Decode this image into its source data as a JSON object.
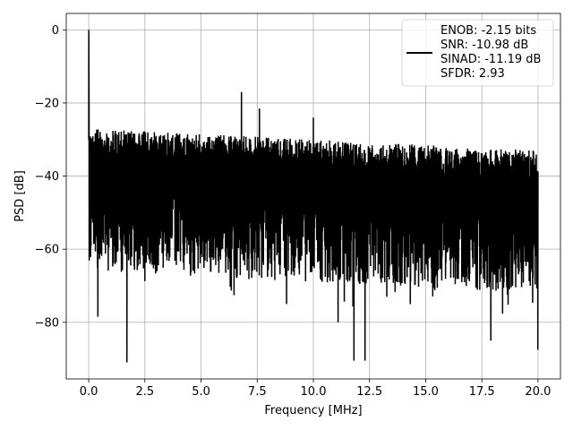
{
  "chart_data": {
    "type": "line",
    "title": "",
    "xlabel": "Frequency [MHz]",
    "ylabel": "PSD [dB]",
    "xlim": [
      -1.0,
      21.0
    ],
    "ylim": [
      -95.5,
      4.5
    ],
    "xticks": [
      0.0,
      2.5,
      5.0,
      7.5,
      10.0,
      12.5,
      15.0,
      17.5,
      20.0
    ],
    "xtick_labels": [
      "0.0",
      "2.5",
      "5.0",
      "7.5",
      "10.0",
      "12.5",
      "15.0",
      "17.5",
      "20.0"
    ],
    "yticks": [
      0,
      -20,
      -40,
      -60,
      -80
    ],
    "ytick_labels": [
      "0",
      "−20",
      "−40",
      "−60",
      "−80"
    ],
    "grid": true,
    "legend_position": "top-right",
    "series": [
      {
        "name": "ENOB: -2.15 bits\nSNR: -10.98 dB\nSINAD: -11.19 dB\nSFDR: 2.93",
        "color": "#000000",
        "description_values": {
          "x_range": [
            0.0,
            20.0
          ],
          "noise_upper_envelope_start": -27,
          "noise_upper_envelope_end": -33,
          "noise_lower_typical": -62,
          "dc_peak": 0.0,
          "spurs": [
            {
              "x": 6.8,
              "y": -17
            },
            {
              "x": 7.6,
              "y": -21.5
            },
            {
              "x": 10.0,
              "y": -24
            }
          ],
          "deep_dips": [
            {
              "x": 0.4,
              "y": -78.5
            },
            {
              "x": 1.7,
              "y": -91
            },
            {
              "x": 11.1,
              "y": -80
            },
            {
              "x": 11.8,
              "y": -90.5
            },
            {
              "x": 12.3,
              "y": -90.5
            },
            {
              "x": 17.9,
              "y": -85
            },
            {
              "x": 20.0,
              "y": -87.5
            }
          ]
        }
      }
    ],
    "legend_lines": [
      "ENOB: -2.15 bits",
      "SNR: -10.98 dB",
      "SINAD: -11.19 dB",
      "SFDR: 2.93"
    ]
  }
}
